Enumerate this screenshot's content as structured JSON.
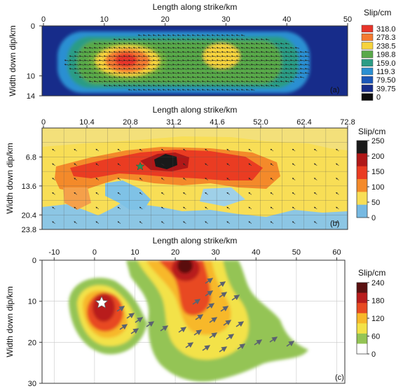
{
  "panels": [
    {
      "id": "a",
      "xlabel": "Length along strike/km",
      "ylabel": "Width down dip/km",
      "xticks": [
        "0",
        "10",
        "20",
        "30",
        "40",
        "50"
      ],
      "yticks": [
        "0",
        "10",
        "14"
      ],
      "legend_title": "Slip/cm",
      "legend_labels": [
        "318.0",
        "278.3",
        "238.5",
        "198.8",
        "159.0",
        "119.3",
        "79.50",
        "39.75",
        "0"
      ],
      "colors": [
        "#e8352a",
        "#f47a30",
        "#f6d33c",
        "#59a94a",
        "#2c9c85",
        "#2b8fd2",
        "#1b56b8",
        "#172c8a",
        "#0d0d0d"
      ],
      "panel_label": "(a)"
    },
    {
      "id": "b",
      "xlabel": "Length along strike/km",
      "ylabel": "Width down dip/km",
      "xticks": [
        "0",
        "10.4",
        "20.8",
        "31.2",
        "41.6",
        "52.0",
        "62.4",
        "72.8"
      ],
      "yticks": [
        "6.8",
        "13.6",
        "20.4",
        "23.8"
      ],
      "legend_title": "Slip/cm",
      "legend_labels": [
        "250",
        "200",
        "150",
        "100",
        "50",
        "0"
      ],
      "colors": [
        "#1a1a1a",
        "#b01818",
        "#ea3c22",
        "#f48a2a",
        "#f8de56",
        "#76b9e2"
      ],
      "panel_label": "(b)"
    },
    {
      "id": "c",
      "xlabel": "Length along strike/km",
      "ylabel": "Width down dip/km",
      "xticks": [
        "-10",
        "0",
        "10",
        "20",
        "30",
        "40",
        "50",
        "60"
      ],
      "yticks": [
        "0",
        "10",
        "20",
        "30"
      ],
      "legend_title": "Slip/cm",
      "legend_labels": [
        "240",
        "180",
        "120",
        "60",
        "0"
      ],
      "colors": [
        "#5a1010",
        "#b81c1c",
        "#e84a22",
        "#f7b82a",
        "#f3e248",
        "#94c455",
        "#ffffff"
      ],
      "panel_label": "(c)"
    }
  ],
  "chart_data": [
    {
      "type": "heatmap",
      "panel": "a",
      "xlabel": "Length along strike/km",
      "ylabel": "Width down dip/km",
      "xlim": [
        0,
        50
      ],
      "ylim": [
        0,
        14
      ],
      "colorbar_label": "Slip/cm",
      "colorbar_levels": [
        318.0,
        278.3,
        238.5,
        198.8,
        159.0,
        119.3,
        79.5,
        39.75,
        0
      ],
      "slip_peaks": [
        {
          "x": 15,
          "y": 6,
          "slip": 300
        },
        {
          "x": 28.5,
          "y": 5,
          "slip": 235
        }
      ]
    },
    {
      "type": "heatmap",
      "panel": "b",
      "xlabel": "Length along strike/km",
      "ylabel": "Width down dip/km",
      "xlim": [
        0,
        72.8
      ],
      "ylim": [
        0,
        23.8
      ],
      "colorbar_label": "Slip/cm",
      "colorbar_range": [
        0,
        250
      ],
      "slip_peaks": [
        {
          "x": 26,
          "y": 5.5,
          "slip": 240
        }
      ],
      "hypocenter": {
        "x": 21,
        "y": 6.8
      }
    },
    {
      "type": "heatmap",
      "panel": "c",
      "xlabel": "Length along strike/km",
      "ylabel": "Width down dip/km",
      "xlim": [
        -13,
        62
      ],
      "ylim": [
        0,
        30
      ],
      "colorbar_label": "Slip/cm",
      "colorbar_range": [
        0,
        240
      ],
      "slip_peaks": [
        {
          "x": 1,
          "y": 11,
          "slip": 200
        },
        {
          "x": 22,
          "y": 1.5,
          "slip": 240
        }
      ],
      "hypocenter": {
        "x": 1,
        "y": 11
      }
    }
  ]
}
